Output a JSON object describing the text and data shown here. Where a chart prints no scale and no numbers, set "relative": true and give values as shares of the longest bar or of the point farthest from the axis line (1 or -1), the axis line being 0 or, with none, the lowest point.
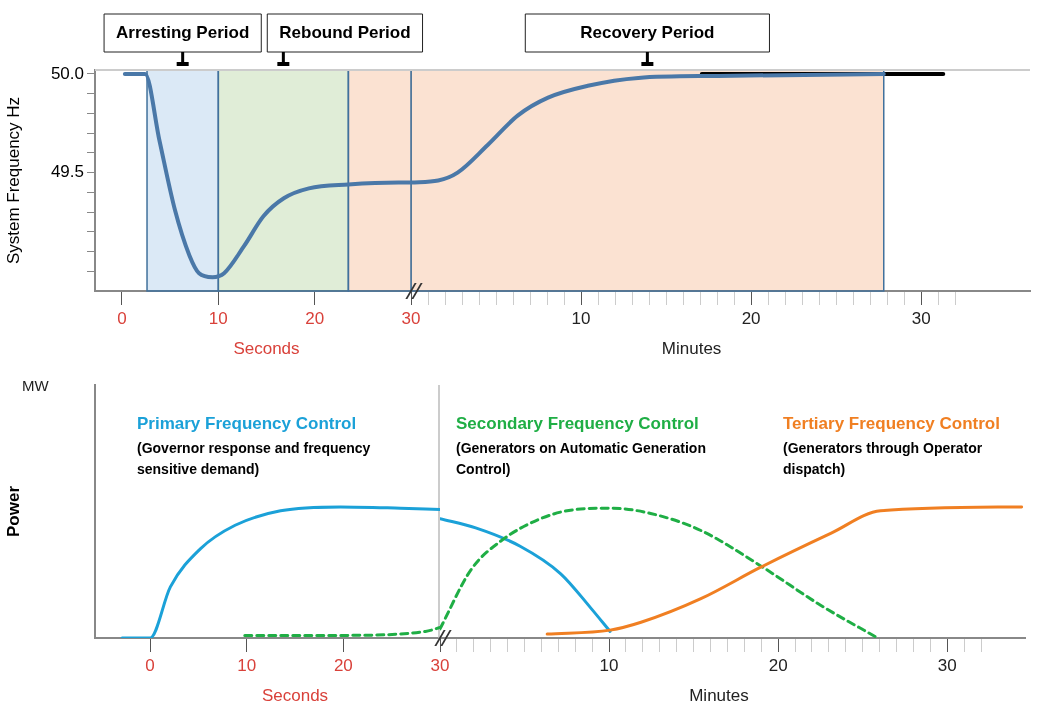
{
  "chart_data": [
    {
      "type": "line",
      "ylabel": "System Frequency Hz",
      "xlabel": "Seconds",
      "grid": false,
      "legend": false,
      "marker": "none",
      "xlim": [
        -2.8,
        30
      ],
      "ylim": [
        48.9,
        50.02
      ],
      "xticks": [
        0,
        10,
        20,
        30
      ],
      "yticks": [
        {
          "value": 49.0,
          "label": null
        },
        {
          "value": 49.1,
          "label": null
        },
        {
          "value": 49.2,
          "label": null
        },
        {
          "value": 49.3,
          "label": null
        },
        {
          "value": 49.4,
          "label": null
        },
        {
          "value": 49.5,
          "label": "49.5"
        },
        {
          "value": 49.6,
          "label": null
        },
        {
          "value": 49.7,
          "label": null
        },
        {
          "value": 49.8,
          "label": null
        },
        {
          "value": 49.9,
          "label": null
        },
        {
          "value": 50.0,
          "label": "50.0"
        }
      ],
      "bands": [
        {
          "axis": "x",
          "from": 2.6,
          "to": 10,
          "label": "Arresting Period",
          "color": "#5b9bd5"
        },
        {
          "axis": "x",
          "from": 10,
          "to": 23.5,
          "label": "Rebound Period",
          "color": "#70ad47"
        },
        {
          "axis": "x",
          "from": 23.5,
          "to": 30,
          "label": null,
          "color": "#ed7d31"
        }
      ],
      "series": [
        {
          "color": "#4a78a8",
          "x": [
            0.3,
            2.4,
            3.9,
            5.5,
            7.0,
            8.0,
            9.4,
            10.6,
            12.7,
            14.7,
            16.8,
            19.4,
            23.5,
            28.7,
            30
          ],
          "values": [
            50.0,
            50.0,
            49.66,
            49.31,
            49.08,
            48.99,
            48.97,
            48.99,
            49.13,
            49.28,
            49.37,
            49.42,
            49.44,
            49.45,
            49.45
          ]
        }
      ]
    },
    {
      "type": "line",
      "xlabel": "Minutes",
      "grid": false,
      "legend": false,
      "marker": "none",
      "tick_labels": "x",
      "xlim": [
        0,
        36.4
      ],
      "ylim": [
        48.9,
        50.02
      ],
      "xticks": [
        {
          "value": 1,
          "label": null
        },
        {
          "value": 2,
          "label": null
        },
        {
          "value": 3,
          "label": null
        },
        {
          "value": 4,
          "label": null
        },
        {
          "value": 5,
          "label": null
        },
        {
          "value": 6,
          "label": null
        },
        {
          "value": 7,
          "label": null
        },
        {
          "value": 8,
          "label": null
        },
        {
          "value": 9,
          "label": null
        },
        10,
        {
          "value": 11,
          "label": null
        },
        {
          "value": 12,
          "label": null
        },
        {
          "value": 13,
          "label": null
        },
        {
          "value": 14,
          "label": null
        },
        {
          "value": 15,
          "label": null
        },
        {
          "value": 16,
          "label": null
        },
        {
          "value": 17,
          "label": null
        },
        {
          "value": 18,
          "label": null
        },
        {
          "value": 19,
          "label": null
        },
        20,
        {
          "value": 21,
          "label": null
        },
        {
          "value": 22,
          "label": null
        },
        {
          "value": 23,
          "label": null
        },
        {
          "value": 24,
          "label": null
        },
        {
          "value": 25,
          "label": null
        },
        {
          "value": 26,
          "label": null
        },
        {
          "value": 27,
          "label": null
        },
        {
          "value": 28,
          "label": null
        },
        {
          "value": 29,
          "label": null
        },
        30,
        {
          "value": 31,
          "label": null
        },
        {
          "value": 32,
          "label": null
        }
      ],
      "bands": [
        {
          "axis": "x",
          "from": 0,
          "to": 27.8,
          "label": "Recovery Period",
          "color": "#ed7d31"
        }
      ],
      "series": [
        {
          "color": "#000000",
          "x": [
            17.1,
            31.3
          ],
          "values": [
            50.0,
            50.0
          ]
        },
        {
          "color": "#4a78a8",
          "x": [
            0,
            1.6,
            2.74,
            4.51,
            6.29,
            8.06,
            10.4,
            13.37,
            18.06,
            27.8
          ],
          "values": [
            49.45,
            49.46,
            49.5,
            49.64,
            49.79,
            49.88,
            49.94,
            49.98,
            49.99,
            50.0
          ]
        }
      ]
    },
    {
      "type": "line",
      "relative": true,
      "ylabel": "Power",
      "xlabel": "Seconds",
      "annotations": [
        "(Governor response and frequency sensitive demand)",
        "MW"
      ],
      "grid": false,
      "legend": "top",
      "marker": "none",
      "xlim": [
        -5.7,
        30
      ],
      "xticks": [
        0,
        10,
        20,
        30
      ],
      "ref_lines": [
        {
          "axis": "x",
          "value": 30,
          "label": null,
          "color": "#bbbbbb"
        }
      ],
      "series": [
        {
          "name": "Primary Frequency Control",
          "color": "#1ba1d8",
          "line_style": "solid",
          "x": [
            -2.9,
            0,
            2.1,
            5.2,
            8.8,
            13.5,
            19.7,
            25.9,
            30
          ],
          "values": [
            0,
            0,
            0.39,
            0.68,
            0.86,
            0.97,
            1.0,
            0.99,
            0.98
          ]
        },
        {
          "color": "#1fae45",
          "line_style": "dashed",
          "x": [
            9.8,
            19.7,
            28.5,
            30
          ],
          "values": [
            0.02,
            0.02,
            0.05,
            0.08
          ]
        }
      ]
    },
    {
      "type": "line",
      "relative": true,
      "xlabel": "Minutes",
      "annotations": [
        "(Generators on Automatic Generation Control)",
        "(Generators through Operator dispatch)"
      ],
      "grid": false,
      "legend": "top",
      "marker": "none",
      "tick_labels": "x",
      "xlim": [
        0,
        34.6
      ],
      "xticks": [
        {
          "value": 1,
          "label": null
        },
        {
          "value": 2,
          "label": null
        },
        {
          "value": 3,
          "label": null
        },
        {
          "value": 4,
          "label": null
        },
        {
          "value": 5,
          "label": null
        },
        {
          "value": 6,
          "label": null
        },
        {
          "value": 7,
          "label": null
        },
        {
          "value": 8,
          "label": null
        },
        {
          "value": 9,
          "label": null
        },
        10,
        {
          "value": 11,
          "label": null
        },
        {
          "value": 12,
          "label": null
        },
        {
          "value": 13,
          "label": null
        },
        {
          "value": 14,
          "label": null
        },
        {
          "value": 15,
          "label": null
        },
        {
          "value": 16,
          "label": null
        },
        {
          "value": 17,
          "label": null
        },
        {
          "value": 18,
          "label": null
        },
        {
          "value": 19,
          "label": null
        },
        20,
        {
          "value": 21,
          "label": null
        },
        {
          "value": 22,
          "label": null
        },
        {
          "value": 23,
          "label": null
        },
        {
          "value": 24,
          "label": null
        },
        {
          "value": 25,
          "label": null
        },
        {
          "value": 26,
          "label": null
        },
        {
          "value": 27,
          "label": null
        },
        {
          "value": 28,
          "label": null
        },
        {
          "value": 29,
          "label": null
        },
        30,
        {
          "value": 31,
          "label": null
        },
        {
          "value": 32,
          "label": null
        }
      ],
      "series": [
        {
          "color": "#1ba1d8",
          "line_style": "solid",
          "x": [
            0,
            2.11,
            4.74,
            7.14,
            8.91,
            10.06
          ],
          "values": [
            0.91,
            0.84,
            0.7,
            0.49,
            0.23,
            0.05
          ]
        },
        {
          "name": "Secondary Frequency Control",
          "color": "#1fae45",
          "line_style": "dashed",
          "x": [
            0,
            1.83,
            3.6,
            5.94,
            8.0,
            10.11,
            12.46,
            15.43,
            18.97,
            22.51,
            25.89
          ],
          "values": [
            0.07,
            0.52,
            0.74,
            0.91,
            0.98,
            0.99,
            0.95,
            0.82,
            0.55,
            0.25,
            0
          ]
        },
        {
          "name": "Tertiary Frequency Control",
          "color": "#f07f22",
          "line_style": "solid",
          "x": [
            6.34,
            10.06,
            11.89,
            15.43,
            18.97,
            23.14,
            26.06,
            34.4
          ],
          "values": [
            0.03,
            0.06,
            0.12,
            0.3,
            0.54,
            0.8,
            0.97,
            1.0
          ]
        }
      ]
    }
  ]
}
